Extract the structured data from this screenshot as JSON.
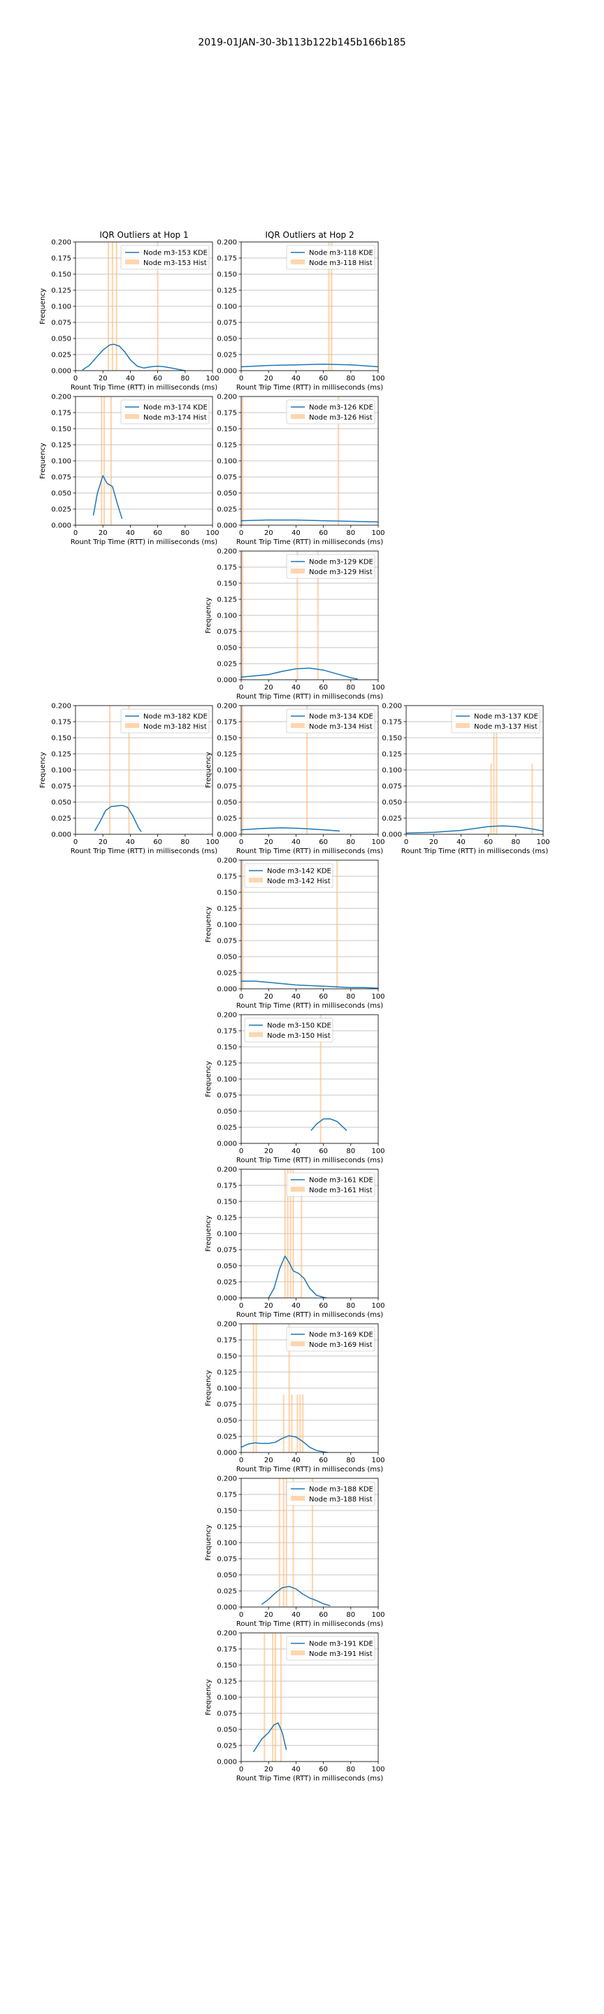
{
  "figure": {
    "title": "2019-01JAN-30-3b113b122b145b166b185"
  },
  "colors": {
    "kde": "#1f77b4",
    "hist": "#ffbb78",
    "grid": "#b0b0b0",
    "axis": "#000000"
  },
  "chart_data": [
    {
      "id": "m3-153",
      "row": 0,
      "col": 0,
      "type": "line",
      "title": "IQR Outliers at Hop 1",
      "xlabel": "Rount Trip Time (RTT) in milliseconds (ms)",
      "ylabel": "Frequency",
      "xlim": [
        0,
        100
      ],
      "ylim": [
        0,
        0.2
      ],
      "grid": true,
      "legend": "upper-right",
      "series": [
        {
          "name": "Node m3-153 KDE",
          "kind": "kde",
          "x": [
            5,
            10,
            15,
            20,
            25,
            28,
            32,
            36,
            40,
            45,
            50,
            55,
            60,
            65,
            70,
            75,
            80
          ],
          "y": [
            0.001,
            0.008,
            0.02,
            0.032,
            0.04,
            0.041,
            0.038,
            0.029,
            0.017,
            0.007,
            0.004,
            0.006,
            0.007,
            0.006,
            0.004,
            0.002,
            0.0
          ]
        },
        {
          "name": "Node m3-153 Hist",
          "kind": "hist",
          "x": [
            24,
            27,
            30,
            60
          ],
          "y": [
            0.2,
            0.2,
            0.2,
            0.2
          ]
        }
      ]
    },
    {
      "id": "m3-118",
      "row": 0,
      "col": 1,
      "type": "line",
      "title": "IQR Outliers at Hop 2",
      "xlabel": "Rount Trip Time (RTT) in milliseconds (ms)",
      "ylabel": "",
      "xlim": [
        0,
        100
      ],
      "ylim": [
        0,
        0.2
      ],
      "grid": true,
      "legend": "upper-right",
      "series": [
        {
          "name": "Node m3-118 KDE",
          "kind": "kde",
          "x": [
            0,
            20,
            40,
            60,
            80,
            100
          ],
          "y": [
            0.006,
            0.008,
            0.009,
            0.01,
            0.009,
            0.006
          ]
        },
        {
          "name": "Node m3-118 Hist",
          "kind": "hist",
          "x": [
            64,
            66
          ],
          "y": [
            0.2,
            0.2
          ]
        }
      ]
    },
    {
      "id": "m3-174",
      "row": 1,
      "col": 0,
      "type": "line",
      "title": "",
      "xlabel": "Rount Trip Time (RTT) in milliseconds (ms)",
      "ylabel": "Frequency",
      "xlim": [
        0,
        100
      ],
      "ylim": [
        0,
        0.2
      ],
      "grid": true,
      "legend": "upper-right",
      "series": [
        {
          "name": "Node m3-174 KDE",
          "kind": "kde",
          "x": [
            13,
            16,
            20,
            23,
            27,
            31,
            34
          ],
          "y": [
            0.015,
            0.05,
            0.077,
            0.065,
            0.06,
            0.03,
            0.01
          ]
        },
        {
          "name": "Node m3-174 Hist",
          "kind": "hist",
          "x": [
            19,
            21,
            26
          ],
          "y": [
            0.2,
            0.2,
            0.2
          ]
        }
      ]
    },
    {
      "id": "m3-126",
      "row": 1,
      "col": 1,
      "type": "line",
      "title": "",
      "xlabel": "Rount Trip Time (RTT) in milliseconds (ms)",
      "ylabel": "",
      "xlim": [
        0,
        100
      ],
      "ylim": [
        0,
        0.2
      ],
      "grid": true,
      "legend": "upper-right",
      "series": [
        {
          "name": "Node m3-126 KDE",
          "kind": "kde",
          "x": [
            0,
            20,
            40,
            60,
            80,
            100
          ],
          "y": [
            0.007,
            0.008,
            0.008,
            0.007,
            0.006,
            0.005
          ]
        },
        {
          "name": "Node m3-126 Hist",
          "kind": "hist",
          "x": [
            1,
            71
          ],
          "y": [
            0.2,
            0.2
          ]
        }
      ]
    },
    {
      "id": "m3-129",
      "row": 2,
      "col": 1,
      "type": "line",
      "title": "",
      "xlabel": "Rount Trip Time (RTT) in milliseconds (ms)",
      "ylabel": "Frequency",
      "xlim": [
        0,
        100
      ],
      "ylim": [
        0,
        0.2
      ],
      "grid": true,
      "legend": "upper-right",
      "series": [
        {
          "name": "Node m3-129 KDE",
          "kind": "kde",
          "x": [
            0,
            10,
            20,
            30,
            40,
            50,
            60,
            70,
            80,
            85
          ],
          "y": [
            0.004,
            0.006,
            0.008,
            0.013,
            0.017,
            0.018,
            0.015,
            0.009,
            0.003,
            0.001
          ]
        },
        {
          "name": "Node m3-129 Hist",
          "kind": "hist",
          "x": [
            1,
            41,
            56
          ],
          "y": [
            0.2,
            0.2,
            0.2
          ]
        }
      ]
    },
    {
      "id": "m3-182",
      "row": 3,
      "col": 0,
      "type": "line",
      "title": "",
      "xlabel": "Rount Trip Time (RTT) in milliseconds (ms)",
      "ylabel": "Frequency",
      "xlim": [
        0,
        100
      ],
      "ylim": [
        0,
        0.2
      ],
      "grid": true,
      "legend": "upper-right",
      "series": [
        {
          "name": "Node m3-182 KDE",
          "kind": "kde",
          "x": [
            14,
            18,
            22,
            26,
            30,
            34,
            38,
            42,
            46,
            48
          ],
          "y": [
            0.005,
            0.02,
            0.037,
            0.043,
            0.044,
            0.045,
            0.042,
            0.028,
            0.01,
            0.004
          ]
        },
        {
          "name": "Node m3-182 Hist",
          "kind": "hist",
          "x": [
            25,
            39
          ],
          "y": [
            0.2,
            0.2
          ]
        }
      ]
    },
    {
      "id": "m3-134",
      "row": 3,
      "col": 1,
      "type": "line",
      "title": "",
      "xlabel": "Rount Trip Time (RTT) in milliseconds (ms)",
      "ylabel": "Frequency",
      "xlim": [
        0,
        100
      ],
      "ylim": [
        0,
        0.2
      ],
      "grid": true,
      "legend": "upper-right",
      "series": [
        {
          "name": "Node m3-134 KDE",
          "kind": "kde",
          "x": [
            0,
            15,
            30,
            45,
            60,
            72
          ],
          "y": [
            0.007,
            0.009,
            0.01,
            0.009,
            0.007,
            0.005
          ]
        },
        {
          "name": "Node m3-134 Hist",
          "kind": "hist",
          "x": [
            1,
            48
          ],
          "y": [
            0.2,
            0.2
          ]
        }
      ]
    },
    {
      "id": "m3-137",
      "row": 3,
      "col": 2,
      "type": "line",
      "title": "",
      "xlabel": "Rount Trip Time (RTT) in milliseconds (ms)",
      "ylabel": "",
      "xlim": [
        0,
        100
      ],
      "ylim": [
        0,
        0.2
      ],
      "grid": true,
      "legend": "upper-right",
      "series": [
        {
          "name": "Node m3-137 KDE",
          "kind": "kde",
          "x": [
            0,
            20,
            40,
            50,
            60,
            70,
            80,
            90,
            100
          ],
          "y": [
            0.002,
            0.003,
            0.006,
            0.009,
            0.012,
            0.013,
            0.012,
            0.009,
            0.005
          ]
        },
        {
          "name": "Node m3-137 Hist",
          "kind": "hist",
          "x": [
            62,
            64,
            66,
            92
          ],
          "y": [
            0.11,
            0.16,
            0.16,
            0.11
          ]
        }
      ]
    },
    {
      "id": "m3-142",
      "row": 4,
      "col": 1,
      "type": "line",
      "title": "",
      "xlabel": "Rount Trip Time (RTT) in milliseconds (ms)",
      "ylabel": "Frequency",
      "xlim": [
        0,
        100
      ],
      "ylim": [
        0,
        0.2
      ],
      "grid": true,
      "legend": "upper-left",
      "series": [
        {
          "name": "Node m3-142 KDE",
          "kind": "kde",
          "x": [
            0,
            10,
            20,
            30,
            40,
            50,
            60,
            70,
            80,
            90,
            100
          ],
          "y": [
            0.012,
            0.012,
            0.01,
            0.008,
            0.006,
            0.005,
            0.004,
            0.003,
            0.002,
            0.002,
            0.001
          ]
        },
        {
          "name": "Node m3-142 Hist",
          "kind": "hist",
          "x": [
            1,
            70
          ],
          "y": [
            0.2,
            0.2
          ]
        }
      ]
    },
    {
      "id": "m3-150",
      "row": 5,
      "col": 1,
      "type": "line",
      "title": "",
      "xlabel": "Rount Trip Time (RTT) in milliseconds (ms)",
      "ylabel": "Frequency",
      "xlim": [
        0,
        100
      ],
      "ylim": [
        0,
        0.2
      ],
      "grid": true,
      "legend": "upper-left",
      "series": [
        {
          "name": "Node m3-150 KDE",
          "kind": "kde",
          "x": [
            51,
            55,
            60,
            65,
            70,
            75,
            77
          ],
          "y": [
            0.02,
            0.03,
            0.038,
            0.038,
            0.034,
            0.024,
            0.02
          ]
        },
        {
          "name": "Node m3-150 Hist",
          "kind": "hist",
          "x": [
            58
          ],
          "y": [
            0.2
          ]
        }
      ]
    },
    {
      "id": "m3-161",
      "row": 6,
      "col": 1,
      "type": "line",
      "title": "",
      "xlabel": "Rount Trip Time (RTT) in milliseconds (ms)",
      "ylabel": "Frequency",
      "xlim": [
        0,
        100
      ],
      "ylim": [
        0,
        0.2
      ],
      "grid": true,
      "legend": "upper-right",
      "series": [
        {
          "name": "Node m3-161 KDE",
          "kind": "kde",
          "x": [
            20,
            24,
            28,
            32,
            35,
            38,
            42,
            46,
            50,
            55,
            60,
            62
          ],
          "y": [
            0.0,
            0.015,
            0.045,
            0.065,
            0.055,
            0.042,
            0.038,
            0.03,
            0.015,
            0.004,
            0.001,
            0.0
          ]
        },
        {
          "name": "Node m3-161 Hist",
          "kind": "hist",
          "x": [
            32,
            34,
            36,
            38,
            44
          ],
          "y": [
            0.2,
            0.2,
            0.2,
            0.2,
            0.17
          ]
        }
      ]
    },
    {
      "id": "m3-169",
      "row": 7,
      "col": 1,
      "type": "line",
      "title": "",
      "xlabel": "Rount Trip Time (RTT) in milliseconds (ms)",
      "ylabel": "Frequency",
      "xlim": [
        0,
        100
      ],
      "ylim": [
        0,
        0.2
      ],
      "grid": true,
      "legend": "upper-right",
      "series": [
        {
          "name": "Node m3-169 KDE",
          "kind": "kde",
          "x": [
            0,
            5,
            10,
            15,
            20,
            25,
            30,
            35,
            40,
            45,
            50,
            55,
            60,
            63
          ],
          "y": [
            0.008,
            0.013,
            0.015,
            0.014,
            0.014,
            0.016,
            0.022,
            0.026,
            0.024,
            0.017,
            0.008,
            0.003,
            0.001,
            0.0
          ]
        },
        {
          "name": "Node m3-169 Hist",
          "kind": "hist",
          "x": [
            9,
            11,
            31,
            35,
            37,
            41,
            43,
            45
          ],
          "y": [
            0.2,
            0.2,
            0.09,
            0.2,
            0.09,
            0.09,
            0.09,
            0.09
          ]
        }
      ]
    },
    {
      "id": "m3-188",
      "row": 8,
      "col": 1,
      "type": "line",
      "title": "",
      "xlabel": "Rount Trip Time (RTT) in milliseconds (ms)",
      "ylabel": "Frequency",
      "xlim": [
        0,
        100
      ],
      "ylim": [
        0,
        0.2
      ],
      "grid": true,
      "legend": "upper-right",
      "series": [
        {
          "name": "Node m3-188 KDE",
          "kind": "kde",
          "x": [
            15,
            20,
            25,
            30,
            35,
            40,
            45,
            50,
            55,
            60,
            65
          ],
          "y": [
            0.004,
            0.012,
            0.022,
            0.03,
            0.032,
            0.028,
            0.02,
            0.014,
            0.01,
            0.005,
            0.002
          ]
        },
        {
          "name": "Node m3-188 Hist",
          "kind": "hist",
          "x": [
            28,
            31,
            33,
            38,
            52
          ],
          "y": [
            0.2,
            0.2,
            0.2,
            0.2,
            0.2
          ]
        }
      ]
    },
    {
      "id": "m3-191",
      "row": 9,
      "col": 1,
      "type": "line",
      "title": "",
      "xlabel": "Rount Trip Time (RTT) in milliseconds (ms)",
      "ylabel": "Frequency",
      "xlim": [
        0,
        100
      ],
      "ylim": [
        0,
        0.2
      ],
      "grid": true,
      "legend": "upper-right",
      "series": [
        {
          "name": "Node m3-191 KDE",
          "kind": "kde",
          "x": [
            9,
            12,
            15,
            20,
            24,
            27,
            30,
            33
          ],
          "y": [
            0.015,
            0.025,
            0.035,
            0.045,
            0.057,
            0.06,
            0.045,
            0.018
          ]
        },
        {
          "name": "Node m3-191 Hist",
          "kind": "hist",
          "x": [
            17,
            23,
            25,
            29
          ],
          "y": [
            0.2,
            0.2,
            0.2,
            0.2
          ]
        }
      ]
    }
  ]
}
